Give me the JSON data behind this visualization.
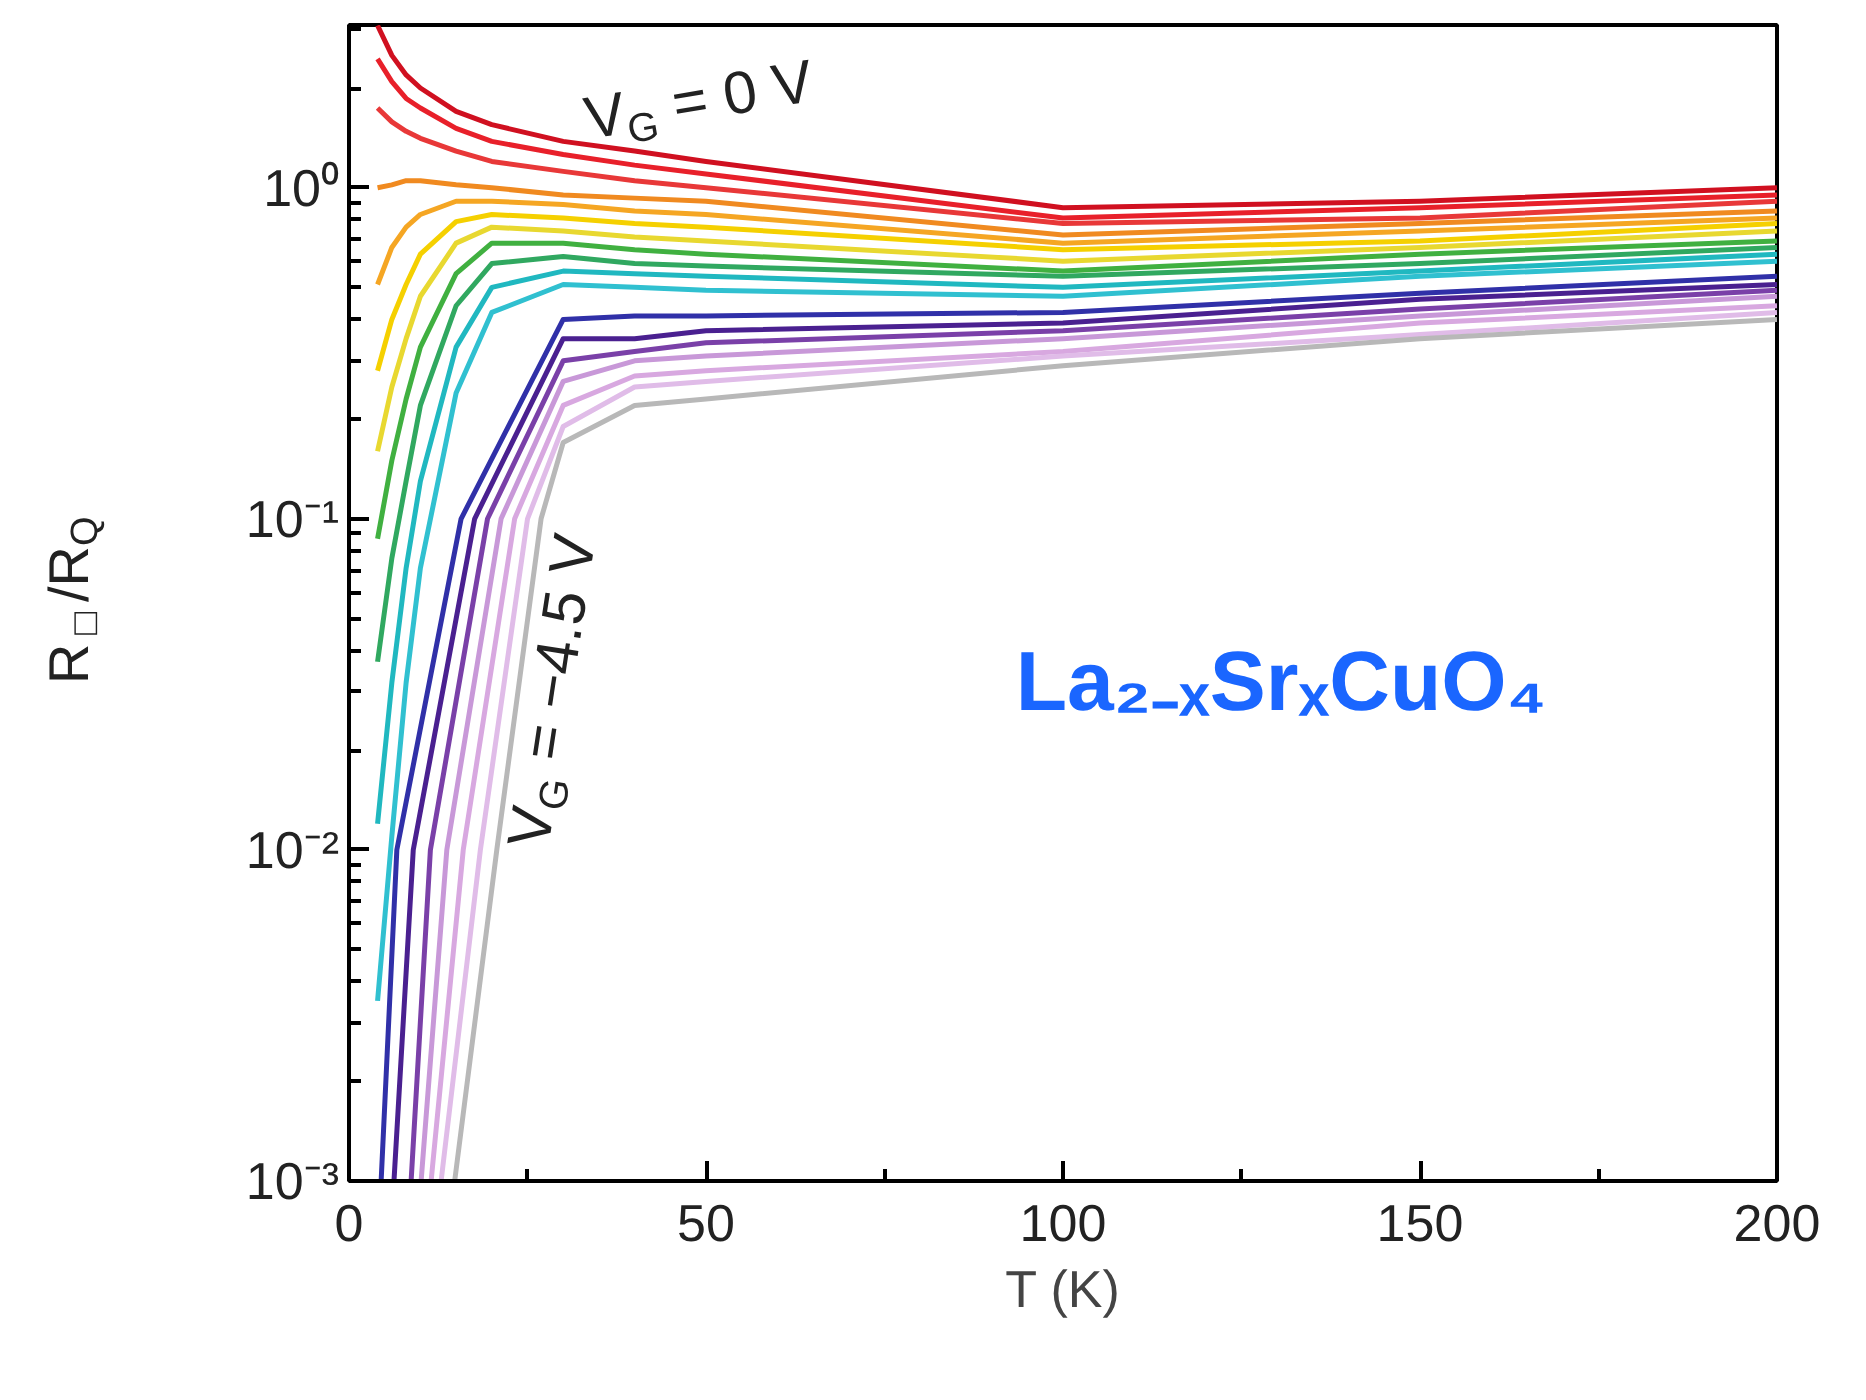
{
  "chart_data": {
    "type": "line",
    "xlabel": "T (K)",
    "ylabel": "R$_{□}$/R$_{Q}$",
    "log": "y",
    "grid": false,
    "marker": "none",
    "line_style": "solid",
    "xlim": [
      0,
      200
    ],
    "xticks": [
      0,
      50,
      100,
      150,
      200
    ],
    "ylim": [
      0.001,
      3.1
    ],
    "yticks": [
      {
        "value": 0.001,
        "label": "10⁻³"
      },
      {
        "value": 0.01,
        "label": "10⁻²"
      },
      {
        "value": 0.1,
        "label": "10⁻¹"
      },
      {
        "value": 1,
        "label": "10⁰"
      }
    ],
    "x": [
      4,
      6,
      8,
      10,
      15,
      20,
      30,
      40,
      50,
      100,
      150,
      200
    ],
    "series": [
      {
        "color": "#d01020",
        "values": [
          3.09,
          2.51,
          2.19,
          2.0,
          1.7,
          1.55,
          1.38,
          1.29,
          1.2,
          0.87,
          0.91,
          1.0
        ]
      },
      {
        "color": "#e8202a",
        "values": [
          2.45,
          2.09,
          1.86,
          1.74,
          1.51,
          1.38,
          1.26,
          1.17,
          1.1,
          0.81,
          0.87,
          0.95
        ]
      },
      {
        "color": "#e83838",
        "values": [
          1.74,
          1.58,
          1.48,
          1.41,
          1.29,
          1.2,
          1.12,
          1.05,
          1.0,
          0.78,
          0.81,
          0.91
        ]
      },
      {
        "color": "#f08a20",
        "values": [
          1.0,
          1.02,
          1.05,
          1.05,
          1.02,
          1.0,
          0.95,
          0.93,
          0.91,
          0.72,
          0.78,
          0.85
        ]
      },
      {
        "color": "#f5a623",
        "values": [
          0.51,
          0.66,
          0.76,
          0.83,
          0.91,
          0.91,
          0.89,
          0.85,
          0.83,
          0.68,
          0.74,
          0.81
        ]
      },
      {
        "color": "#f5d000",
        "values": [
          0.28,
          0.4,
          0.51,
          0.63,
          0.79,
          0.83,
          0.81,
          0.78,
          0.76,
          0.65,
          0.69,
          0.78
        ]
      },
      {
        "color": "#e8d830",
        "values": [
          0.16,
          0.25,
          0.35,
          0.47,
          0.68,
          0.76,
          0.74,
          0.71,
          0.69,
          0.6,
          0.66,
          0.74
        ]
      },
      {
        "color": "#40b040",
        "values": [
          0.087,
          0.15,
          0.23,
          0.33,
          0.55,
          0.68,
          0.68,
          0.65,
          0.63,
          0.56,
          0.63,
          0.69
        ]
      },
      {
        "color": "#30a860",
        "values": [
          0.037,
          0.076,
          0.13,
          0.22,
          0.44,
          0.59,
          0.62,
          0.59,
          0.58,
          0.54,
          0.59,
          0.66
        ]
      },
      {
        "color": "#20b8c0",
        "values": [
          0.012,
          0.032,
          0.071,
          0.13,
          0.33,
          0.5,
          0.56,
          0.55,
          0.54,
          0.5,
          0.56,
          0.63
        ]
      },
      {
        "color": "#30c0d0",
        "values": [
          0.0035,
          0.011,
          0.032,
          0.071,
          0.24,
          0.42,
          0.51,
          0.5,
          0.49,
          0.47,
          0.54,
          0.6
        ]
      },
      {
        "color": "#3030a8",
        "x": [
          4.5,
          6.7,
          15.7,
          30,
          40,
          50,
          100,
          150,
          200
        ],
        "values": [
          0.001,
          0.01,
          0.1,
          0.4,
          0.41,
          0.41,
          0.42,
          0.48,
          0.54
        ]
      },
      {
        "color": "#4a2090",
        "x": [
          6.3,
          9.0,
          17.6,
          30,
          40,
          50,
          100,
          150,
          200
        ],
        "values": [
          0.001,
          0.01,
          0.1,
          0.35,
          0.35,
          0.37,
          0.39,
          0.46,
          0.51
        ]
      },
      {
        "color": "#7a40a8",
        "x": [
          8.7,
          11.4,
          19.4,
          30,
          40,
          50,
          100,
          150,
          200
        ],
        "values": [
          0.001,
          0.01,
          0.1,
          0.3,
          0.32,
          0.34,
          0.37,
          0.43,
          0.49
        ]
      },
      {
        "color": "#c898d8",
        "x": [
          10.1,
          13.7,
          21.3,
          30,
          40,
          50,
          100,
          150,
          200
        ],
        "values": [
          0.001,
          0.01,
          0.1,
          0.26,
          0.3,
          0.31,
          0.35,
          0.41,
          0.47
        ]
      },
      {
        "color": "#d8a8e0",
        "x": [
          11.5,
          16.0,
          23.2,
          30,
          40,
          50,
          100,
          150,
          200
        ],
        "values": [
          0.001,
          0.01,
          0.1,
          0.22,
          0.27,
          0.28,
          0.32,
          0.39,
          0.44
        ]
      },
      {
        "color": "#e0bce8",
        "x": [
          12.9,
          18.4,
          25.0,
          30,
          40,
          50,
          100,
          150,
          200
        ],
        "values": [
          0.001,
          0.01,
          0.1,
          0.19,
          0.25,
          0.26,
          0.31,
          0.36,
          0.42
        ]
      },
      {
        "color": "#b8b8b8",
        "x": [
          14.8,
          20.7,
          26.9,
          30,
          40,
          50,
          100,
          150,
          200
        ],
        "values": [
          0.001,
          0.01,
          0.1,
          0.17,
          0.22,
          0.23,
          0.29,
          0.35,
          0.4
        ]
      }
    ],
    "annotations": [
      "V$_{G}$ = 0 V",
      "V$_{G}$ = −4.5 V",
      "La₂₋ₓSrₓCuO₄"
    ]
  }
}
